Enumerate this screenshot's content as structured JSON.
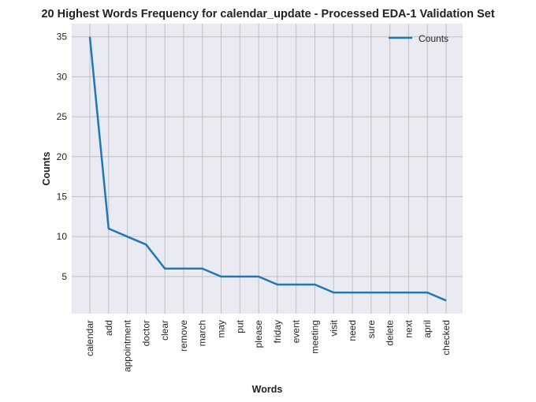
{
  "chart_data": {
    "type": "line",
    "title": "20 Highest Words Frequency for calendar_update - Processed EDA-1 Validation Set",
    "xlabel": "Words",
    "ylabel": "Counts",
    "categories": [
      "calendar",
      "add",
      "appointment",
      "doctor",
      "clear",
      "remove",
      "march",
      "may",
      "put",
      "please",
      "friday",
      "event",
      "meeting",
      "visit",
      "need",
      "sure",
      "delete",
      "next",
      "april",
      "checked"
    ],
    "series": [
      {
        "name": "Counts",
        "values": [
          35,
          11,
          10,
          9,
          6,
          6,
          6,
          5,
          5,
          5,
          4,
          4,
          4,
          3,
          3,
          3,
          3,
          3,
          3,
          2
        ]
      }
    ],
    "yticks": [
      5,
      10,
      15,
      20,
      25,
      30,
      35
    ],
    "ylim": [
      0.35,
      36.65
    ],
    "grid": true,
    "legend_position": "top-right",
    "colors": {
      "line": "#1f77b4",
      "plot_background": "#eaeaf2",
      "grid": "#c0c0c0"
    }
  }
}
